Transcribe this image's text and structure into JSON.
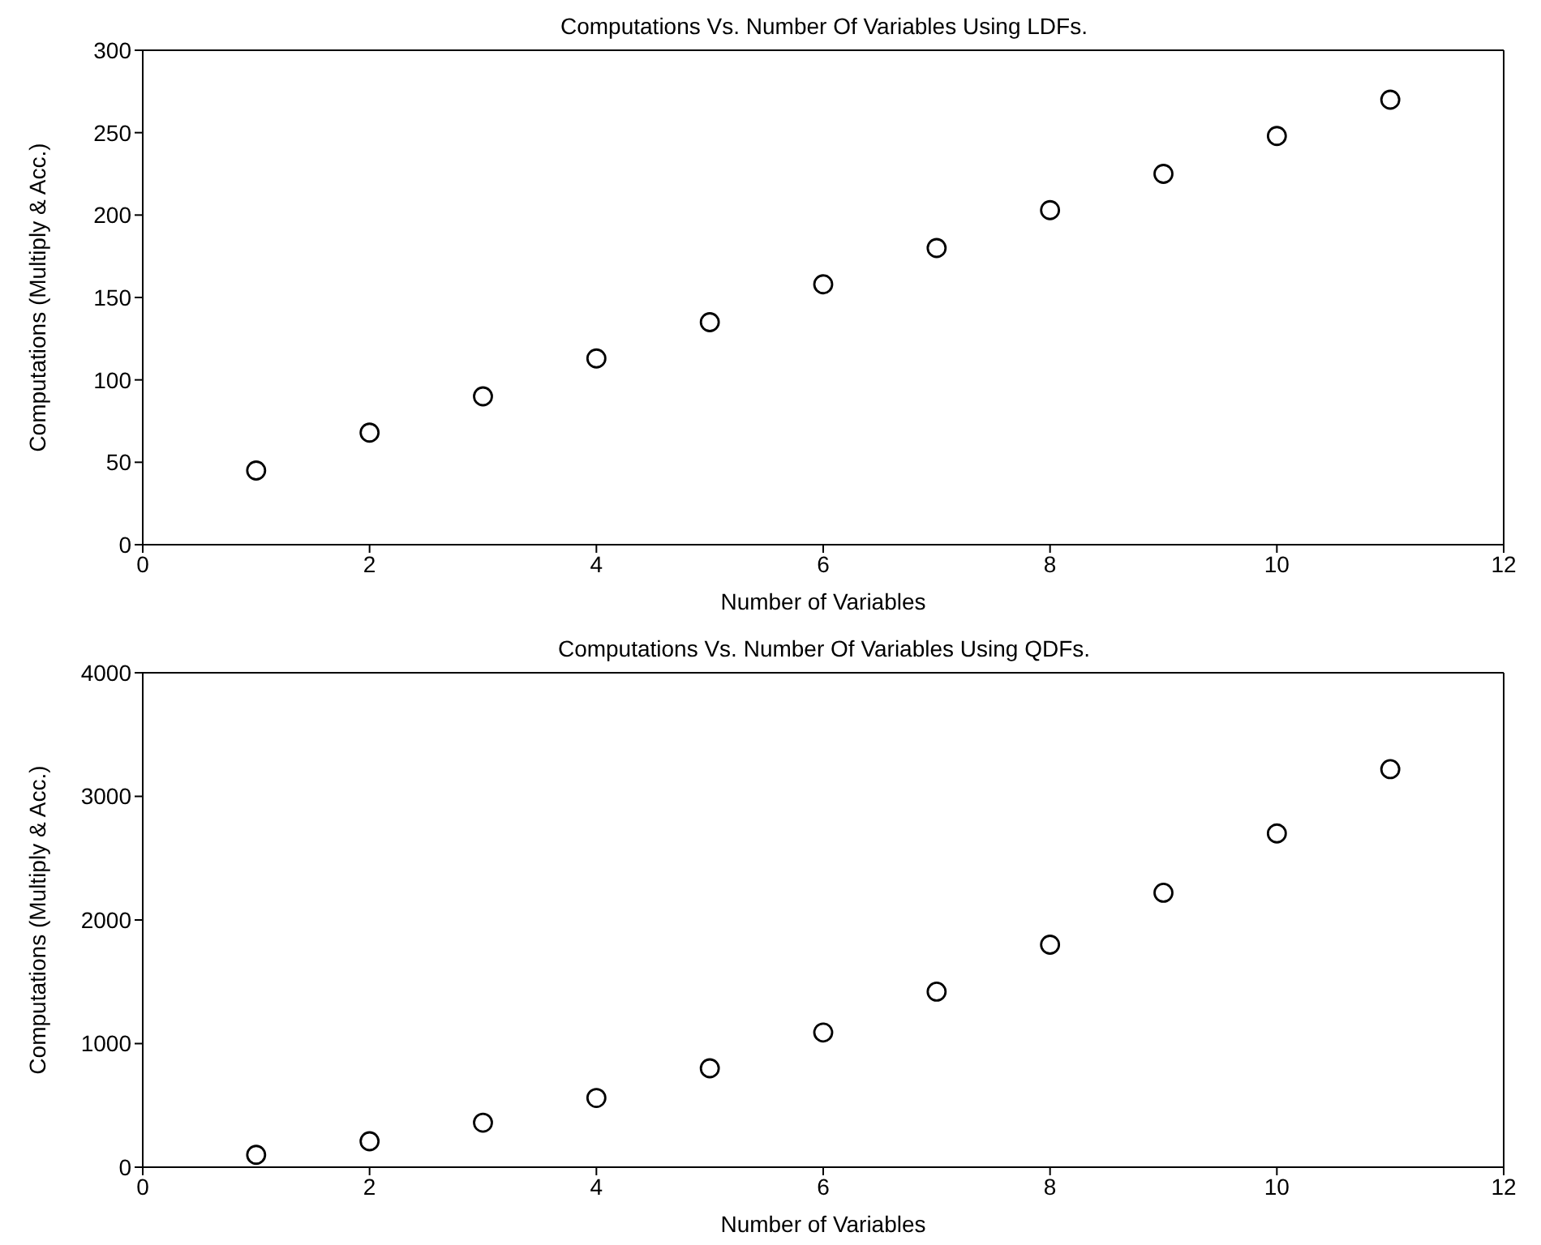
{
  "chart_data": [
    {
      "type": "scatter",
      "title": "Computations Vs. Number Of Variables Using LDFs.",
      "xlabel": "Number of Variables",
      "ylabel": "Computations (Multiply & Acc.)",
      "x": [
        1,
        2,
        3,
        4,
        5,
        6,
        7,
        8,
        9,
        10,
        11
      ],
      "series": [
        {
          "color": "#000000",
          "values": [
            45,
            68,
            90,
            113,
            135,
            158,
            180,
            203,
            225,
            248,
            270
          ]
        }
      ],
      "xlim": [
        0,
        12
      ],
      "xticks": [
        0,
        2,
        4,
        6,
        8,
        10,
        12
      ],
      "ylim": [
        0,
        300
      ],
      "yticks": [
        0,
        50,
        100,
        150,
        200,
        250,
        300
      ],
      "marker": "circle"
    },
    {
      "type": "scatter",
      "title": "Computations Vs. Number Of Variables Using QDFs.",
      "xlabel": "Number of Variables",
      "ylabel": "Computations (Multiply & Acc.)",
      "x": [
        1,
        2,
        3,
        4,
        5,
        6,
        7,
        8,
        9,
        10,
        11
      ],
      "series": [
        {
          "color": "#000000",
          "values": [
            100,
            210,
            360,
            560,
            800,
            1090,
            1420,
            1800,
            2220,
            2700,
            3220
          ]
        }
      ],
      "xlim": [
        0,
        12
      ],
      "xticks": [
        0,
        2,
        4,
        6,
        8,
        10,
        12
      ],
      "ylim": [
        0,
        4000
      ],
      "yticks": [
        0,
        1000,
        2000,
        3000,
        4000
      ],
      "marker": "circle"
    }
  ]
}
